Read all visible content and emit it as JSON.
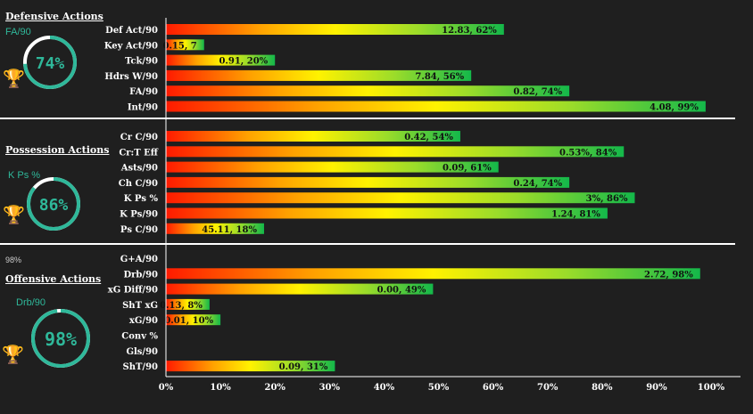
{
  "colors": {
    "bg": "#1f1f1f",
    "ring": "#2fb89a",
    "gauge_text": "#2fb89a",
    "trophy": "#e8b400",
    "gradient": [
      "#ff1a00",
      "#ffa200",
      "#fff200",
      "#9bdc2a",
      "#14b84a"
    ]
  },
  "sections": [
    {
      "title": "Defensive Actions",
      "metric": "FA/90",
      "gauge_value": 74,
      "gauge_text": "74%",
      "trophy_icon": "trophy-icon"
    },
    {
      "title": "Possession Actions",
      "metric": "K Ps %",
      "gauge_value": 86,
      "gauge_text": "86%",
      "trophy_icon": "trophy-icon"
    },
    {
      "title": "Offensive Actions",
      "metric": "Drb/90",
      "gauge_value": 98,
      "gauge_text": "98%",
      "trophy_icon": "trophy-icon"
    }
  ],
  "stray_label": "98%",
  "chart_data": {
    "type": "bar",
    "orientation": "horizontal",
    "xlim": [
      0,
      100
    ],
    "x_ticks": [
      "0%",
      "10%",
      "20%",
      "30%",
      "40%",
      "50%",
      "60%",
      "70%",
      "80%",
      "90%",
      "100%"
    ],
    "groups": [
      {
        "name": "Defensive Actions",
        "rows": [
          {
            "label": "Def Act/90",
            "value": 62,
            "text": "12.83, 62%"
          },
          {
            "label": "Key Act/90",
            "value": 7,
            "text": "0.15, 7"
          },
          {
            "label": "Tck/90",
            "value": 20,
            "text": "0.91, 20%"
          },
          {
            "label": "Hdrs W/90",
            "value": 56,
            "text": "7.84, 56%"
          },
          {
            "label": "FA/90",
            "value": 74,
            "text": "0.82, 74%"
          },
          {
            "label": "Int/90",
            "value": 99,
            "text": "4.08, 99%"
          }
        ]
      },
      {
        "name": "Possession Actions",
        "rows": [
          {
            "label": "Cr C/90",
            "value": 54,
            "text": "0.42, 54%"
          },
          {
            "label": "Cr:T Eff",
            "value": 84,
            "text": "0.53%, 84%"
          },
          {
            "label": "Asts/90",
            "value": 61,
            "text": "0.09, 61%"
          },
          {
            "label": "Ch C/90",
            "value": 74,
            "text": "0.24, 74%"
          },
          {
            "label": "K Ps %",
            "value": 86,
            "text": "3%, 86%"
          },
          {
            "label": "K Ps/90",
            "value": 81,
            "text": "1.24, 81%"
          },
          {
            "label": "Ps C/90",
            "value": 18,
            "text": "45.11, 18%"
          }
        ]
      },
      {
        "name": "Offensive Actions",
        "rows": [
          {
            "label": "G+A/90",
            "value": null,
            "text": ""
          },
          {
            "label": "Drb/90",
            "value": 98,
            "text": "2.72, 98%"
          },
          {
            "label": "xG Diff/90",
            "value": 49,
            "text": "0.00, 49%"
          },
          {
            "label": "ShT xG",
            "value": 8,
            "text": "0.13, 8%"
          },
          {
            "label": "xG/90",
            "value": 10,
            "text": "0.01, 10%"
          },
          {
            "label": "Conv %",
            "value": null,
            "text": ""
          },
          {
            "label": "Gls/90",
            "value": null,
            "text": ""
          },
          {
            "label": "ShT/90",
            "value": 31,
            "text": "0.09, 31%"
          }
        ]
      }
    ]
  }
}
